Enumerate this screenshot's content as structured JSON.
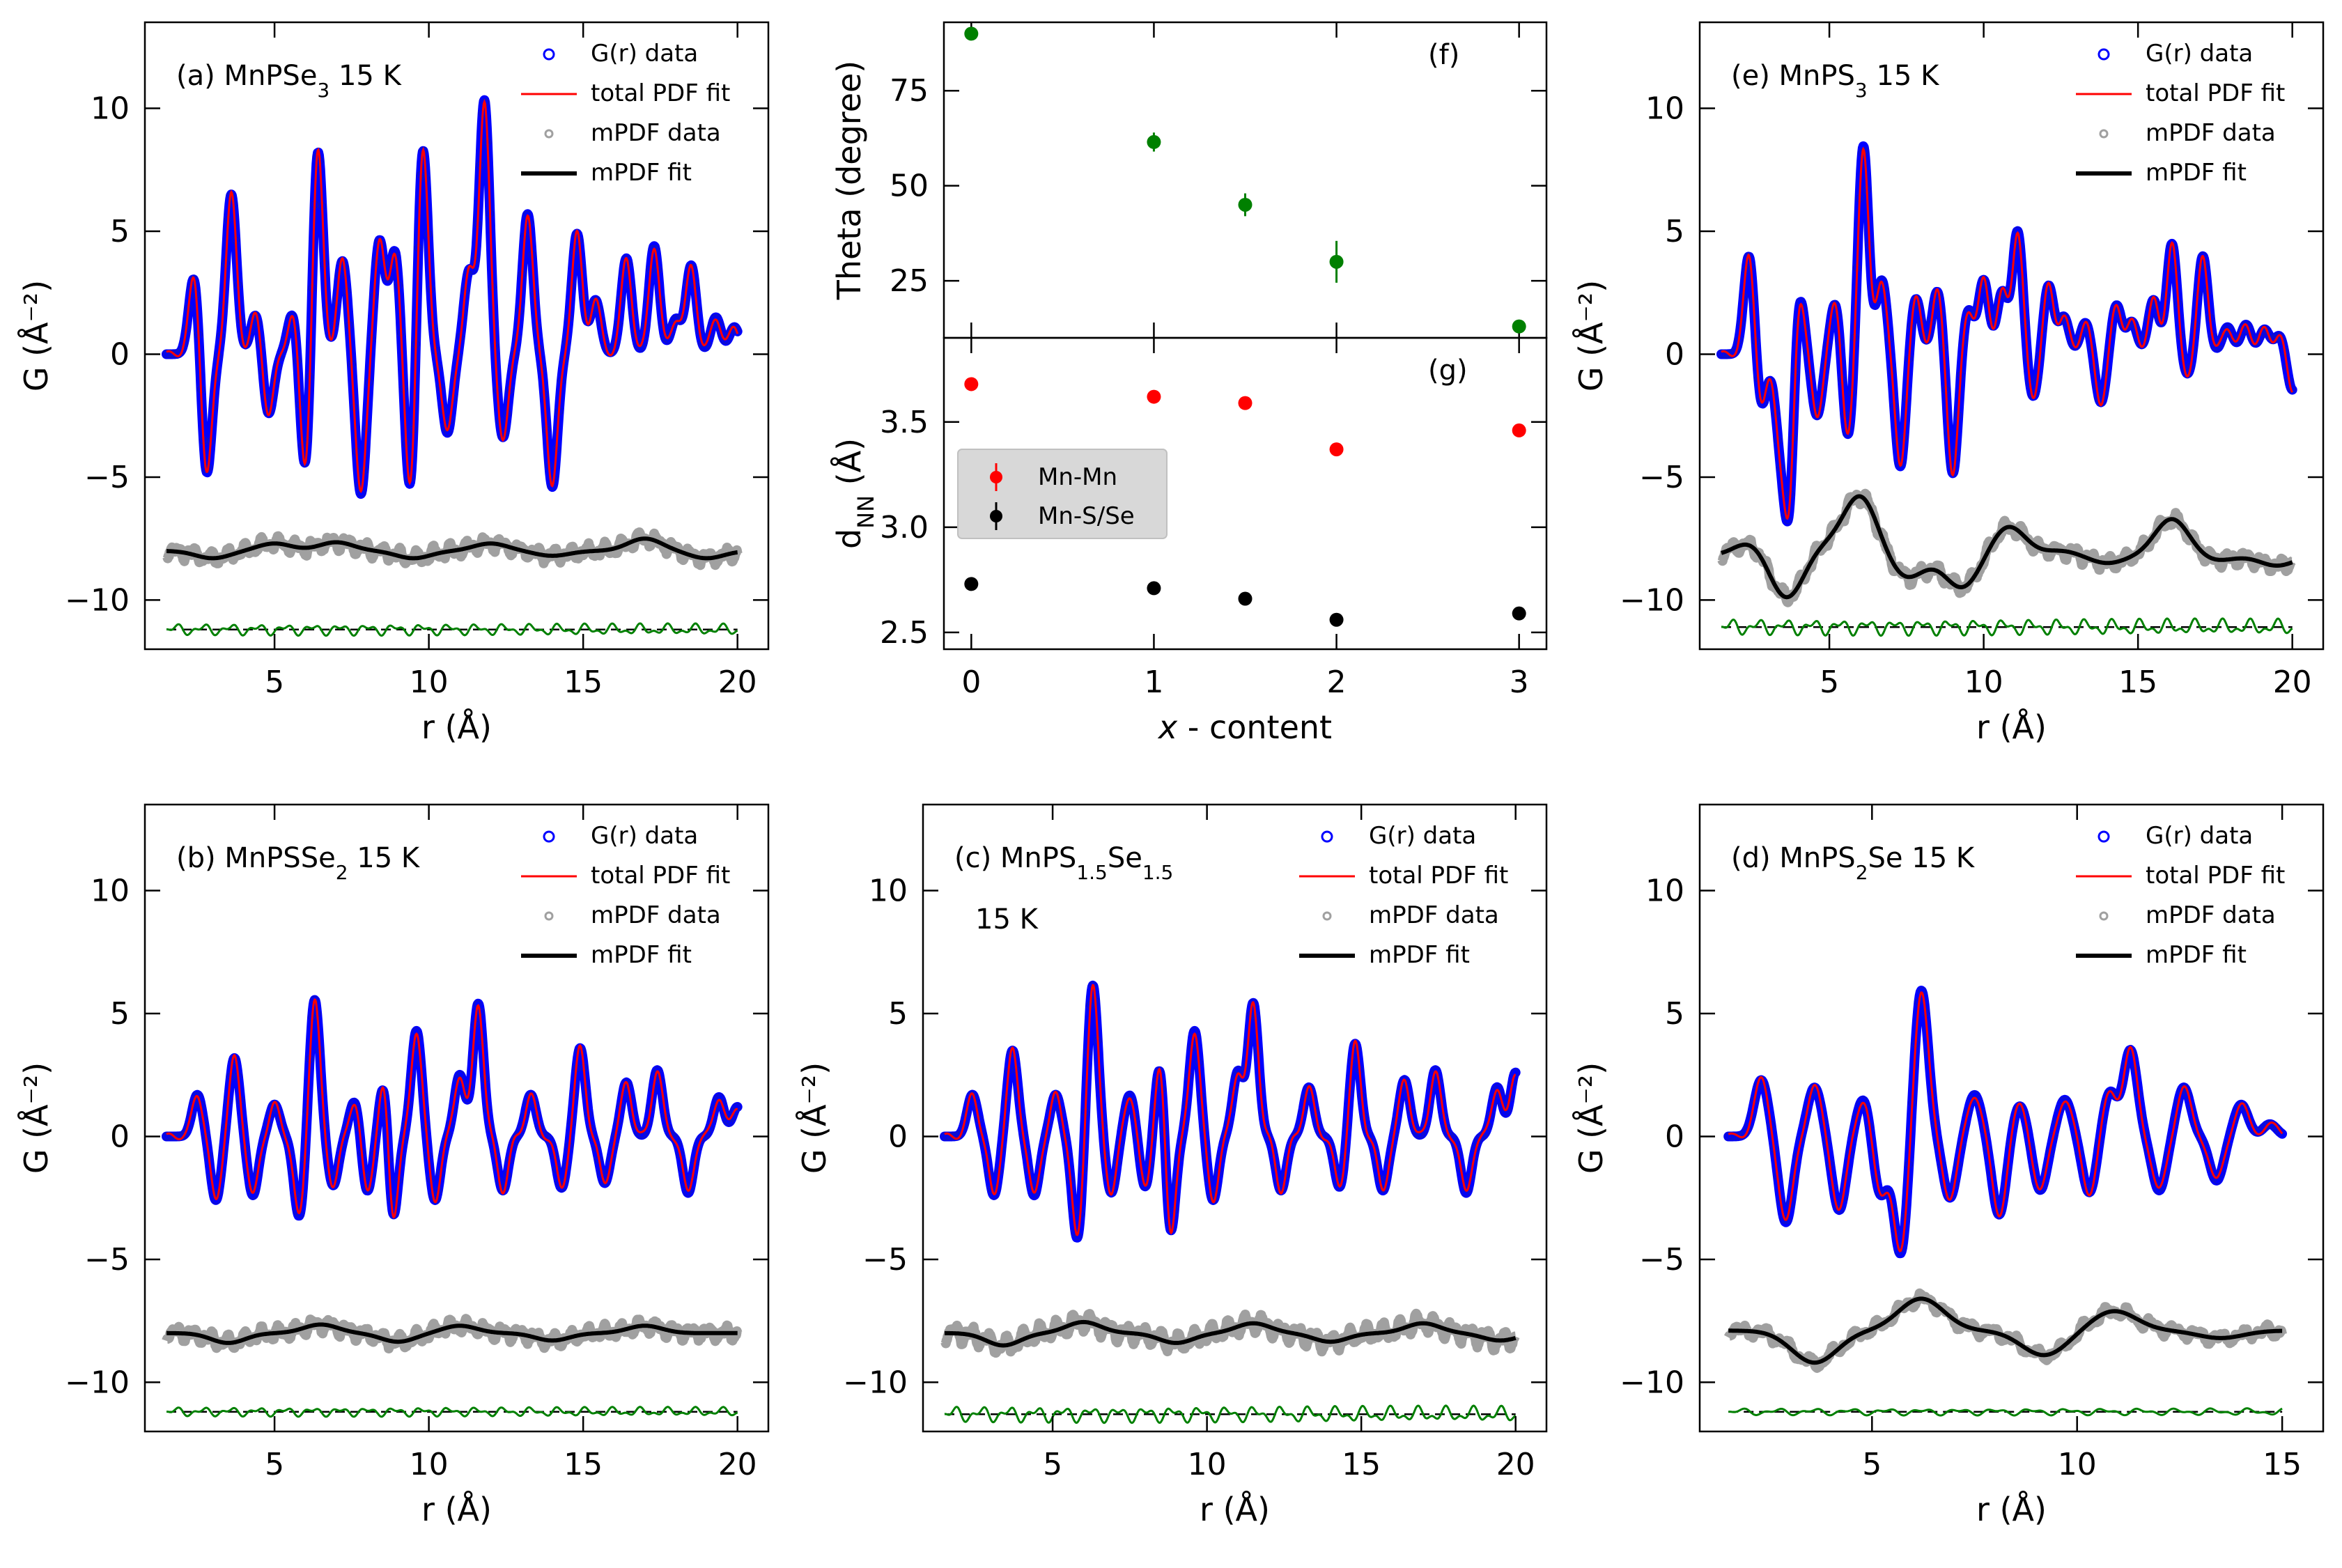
{
  "colors": {
    "g_data": "#0000ff",
    "total_fit": "#ff0000",
    "mpdf_data": "#a0a0a0",
    "mpdf_fit": "#000000",
    "difference": "#008000",
    "theta": "#008000",
    "mn_mn": "#ff0000",
    "mn_s_se": "#000000"
  },
  "legend_pdf": [
    "G(r) data",
    "total PDF fit",
    "mPDF data",
    "mPDF fit"
  ],
  "legend_dnn": [
    "Mn-Mn",
    "Mn-S/Se"
  ],
  "chart_data": [
    {
      "id": "a",
      "type": "line",
      "label_html": "(a) MnPSe<tspan baseline-shift=\"sub\" font-size=\"28\">3</tspan>  15 K",
      "xlabel": "r (Å)",
      "ylabel": "G (Å⁻²)",
      "xlim": [
        0.8,
        21.0
      ],
      "ylim": [
        -12,
        13.5
      ],
      "xticks": [
        5,
        10,
        15,
        20
      ],
      "yticks": [
        -10,
        -5,
        0,
        5,
        10
      ],
      "r_range": [
        1.5,
        20.0
      ],
      "peaks": [
        [
          2.4,
          3.3
        ],
        [
          2.8,
          -5.0
        ],
        [
          3.6,
          6.5
        ],
        [
          4.4,
          1.7
        ],
        [
          4.8,
          -2.5
        ],
        [
          5.6,
          1.8
        ],
        [
          6.0,
          -5.0
        ],
        [
          6.4,
          8.5
        ],
        [
          7.2,
          3.8
        ],
        [
          7.8,
          -5.7
        ],
        [
          8.4,
          4.6
        ],
        [
          8.9,
          4.2
        ],
        [
          9.4,
          -5.8
        ],
        [
          9.8,
          8.6
        ],
        [
          10.6,
          -3.2
        ],
        [
          11.3,
          3.3
        ],
        [
          11.8,
          10.3
        ],
        [
          12.4,
          -3.4
        ],
        [
          13.2,
          5.7
        ],
        [
          14.0,
          -5.4
        ],
        [
          14.8,
          4.9
        ],
        [
          15.4,
          2.2
        ],
        [
          16.4,
          3.9
        ],
        [
          17.3,
          4.4
        ],
        [
          18.0,
          1.4
        ],
        [
          18.5,
          3.6
        ],
        [
          19.3,
          1.5
        ],
        [
          19.9,
          1.1
        ]
      ],
      "mpdf_offset": -8.0,
      "mpdf_bumps": [
        [
          3.0,
          -0.3
        ],
        [
          5.0,
          0.3
        ],
        [
          7.0,
          0.35
        ],
        [
          9.5,
          -0.3
        ],
        [
          12.0,
          0.3
        ],
        [
          14.0,
          -0.2
        ],
        [
          17.0,
          0.5
        ],
        [
          19.0,
          -0.3
        ]
      ],
      "mpdf_noise": 0.3,
      "diff_offset": -11.2,
      "diff_amp": 0.25
    },
    {
      "id": "b",
      "type": "line",
      "label_html": "(b) MnPSSe<tspan baseline-shift=\"sub\" font-size=\"28\">2</tspan>  15 K",
      "xlabel": "r (Å)",
      "ylabel": "G (Å⁻²)",
      "xlim": [
        0.8,
        21.0
      ],
      "ylim": [
        -12,
        13.5
      ],
      "xticks": [
        5,
        10,
        15,
        20
      ],
      "yticks": [
        -10,
        -5,
        0,
        5,
        10
      ],
      "r_range": [
        1.5,
        20.0
      ],
      "peaks": [
        [
          2.5,
          1.7
        ],
        [
          3.1,
          -2.6
        ],
        [
          3.7,
          3.2
        ],
        [
          4.3,
          -2.4
        ],
        [
          5.0,
          1.3
        ],
        [
          5.8,
          -3.3
        ],
        [
          6.3,
          5.6
        ],
        [
          6.9,
          -2.0
        ],
        [
          7.6,
          1.5
        ],
        [
          8.0,
          -2.3
        ],
        [
          8.6,
          3.4
        ],
        [
          8.8,
          -4.5
        ],
        [
          9.6,
          4.3
        ],
        [
          10.2,
          -2.6
        ],
        [
          11.0,
          2.5
        ],
        [
          11.6,
          5.4
        ],
        [
          12.4,
          -2.2
        ],
        [
          13.3,
          1.7
        ],
        [
          14.3,
          -2.1
        ],
        [
          14.9,
          3.6
        ],
        [
          15.7,
          -1.9
        ],
        [
          16.4,
          2.2
        ],
        [
          17.4,
          2.7
        ],
        [
          18.4,
          -2.3
        ],
        [
          19.4,
          1.6
        ],
        [
          20.0,
          1.2
        ]
      ],
      "mpdf_offset": -8.0,
      "mpdf_bumps": [
        [
          3.5,
          -0.4
        ],
        [
          6.5,
          0.35
        ],
        [
          9.0,
          -0.35
        ],
        [
          11.0,
          0.3
        ],
        [
          14.0,
          -0.3
        ],
        [
          17.0,
          0.3
        ]
      ],
      "mpdf_noise": 0.3,
      "diff_offset": -11.2,
      "diff_amp": 0.2
    },
    {
      "id": "c",
      "type": "line",
      "label_html": "(c) MnPS<tspan baseline-shift=\"sub\" font-size=\"28\">1.5</tspan>Se<tspan baseline-shift=\"sub\" font-size=\"28\">1.5</tspan>",
      "label2": "15 K",
      "xlabel": "r (Å)",
      "ylabel": "G (Å⁻²)",
      "xlim": [
        0.8,
        21.0
      ],
      "ylim": [
        -12,
        13.5
      ],
      "xticks": [
        5,
        10,
        15,
        20
      ],
      "yticks": [
        -10,
        -5,
        0,
        5,
        10
      ],
      "r_range": [
        1.5,
        20.0
      ],
      "peaks": [
        [
          2.4,
          1.7
        ],
        [
          3.1,
          -2.4
        ],
        [
          3.7,
          3.5
        ],
        [
          4.4,
          -2.4
        ],
        [
          5.1,
          1.7
        ],
        [
          5.8,
          -4.2
        ],
        [
          6.3,
          6.2
        ],
        [
          6.9,
          -2.3
        ],
        [
          7.5,
          1.7
        ],
        [
          8.0,
          -2.1
        ],
        [
          8.5,
          3.4
        ],
        [
          8.8,
          -4.4
        ],
        [
          9.6,
          4.3
        ],
        [
          10.2,
          -2.6
        ],
        [
          11.0,
          2.6
        ],
        [
          11.5,
          5.4
        ],
        [
          12.4,
          -2.2
        ],
        [
          13.3,
          2.0
        ],
        [
          14.3,
          -2.1
        ],
        [
          14.8,
          3.8
        ],
        [
          15.7,
          -2.2
        ],
        [
          16.4,
          2.3
        ],
        [
          17.4,
          2.7
        ],
        [
          18.4,
          -2.3
        ],
        [
          19.4,
          2.0
        ],
        [
          20.0,
          2.6
        ]
      ],
      "mpdf_offset": -8.0,
      "mpdf_bumps": [
        [
          3.4,
          -0.5
        ],
        [
          6.0,
          0.45
        ],
        [
          9.0,
          -0.4
        ],
        [
          11.5,
          0.4
        ],
        [
          14.0,
          -0.35
        ],
        [
          17.0,
          0.4
        ],
        [
          19.5,
          -0.3
        ]
      ],
      "mpdf_noise": 0.4,
      "diff_offset": -11.3,
      "diff_amp": 0.35
    },
    {
      "id": "d",
      "type": "line",
      "label_html": "(d) MnPS<tspan baseline-shift=\"sub\" font-size=\"28\">2</tspan>Se  15 K",
      "xlabel": "r (Å)",
      "ylabel": "G (Å⁻²)",
      "xlim": [
        0.8,
        16.0
      ],
      "ylim": [
        -12,
        13.5
      ],
      "xticks": [
        5,
        10,
        15
      ],
      "yticks": [
        -10,
        -5,
        0,
        5,
        10
      ],
      "r_range": [
        1.5,
        15.0
      ],
      "peaks": [
        [
          2.3,
          2.3
        ],
        [
          2.9,
          -3.5
        ],
        [
          3.6,
          2.0
        ],
        [
          4.2,
          -3.0
        ],
        [
          4.8,
          1.6
        ],
        [
          5.2,
          -2.4
        ],
        [
          5.7,
          -4.8
        ],
        [
          6.2,
          6.0
        ],
        [
          6.9,
          -2.5
        ],
        [
          7.5,
          1.7
        ],
        [
          8.1,
          -3.2
        ],
        [
          8.6,
          1.3
        ],
        [
          9.1,
          -2.2
        ],
        [
          9.7,
          1.5
        ],
        [
          10.3,
          -2.3
        ],
        [
          10.8,
          1.8
        ],
        [
          11.3,
          3.5
        ],
        [
          12.0,
          -2.2
        ],
        [
          12.6,
          2.0
        ],
        [
          13.4,
          -1.8
        ],
        [
          14.0,
          1.3
        ],
        [
          14.7,
          0.5
        ]
      ],
      "mpdf_offset": -7.9,
      "mpdf_bumps": [
        [
          3.6,
          -1.3
        ],
        [
          6.2,
          1.3
        ],
        [
          9.2,
          -1.0
        ],
        [
          10.9,
          0.8
        ],
        [
          13.5,
          -0.3
        ]
      ],
      "mpdf_noise": 0.25,
      "diff_offset": -11.2,
      "diff_amp": 0.15
    },
    {
      "id": "e",
      "type": "line",
      "label_html": "(e) MnPS<tspan baseline-shift=\"sub\" font-size=\"28\">3</tspan>   15 K",
      "xlabel": "r (Å)",
      "ylabel": "G (Å⁻²)",
      "xlim": [
        0.8,
        21.0
      ],
      "ylim": [
        -12,
        13.5
      ],
      "xticks": [
        5,
        10,
        15,
        20
      ],
      "yticks": [
        -10,
        -5,
        0,
        5,
        10
      ],
      "r_range": [
        1.5,
        20.0
      ],
      "peaks": [
        [
          2.4,
          4.1
        ],
        [
          2.8,
          -2.2
        ],
        [
          3.4,
          -3.0
        ],
        [
          3.7,
          -6.4
        ],
        [
          4.0,
          3.0
        ],
        [
          4.6,
          -2.5
        ],
        [
          5.2,
          2.2
        ],
        [
          5.6,
          -3.5
        ],
        [
          6.1,
          8.5
        ],
        [
          6.7,
          3.0
        ],
        [
          7.3,
          -4.6
        ],
        [
          7.8,
          2.3
        ],
        [
          8.5,
          2.6
        ],
        [
          9.0,
          -4.9
        ],
        [
          9.5,
          1.8
        ],
        [
          10.0,
          3.0
        ],
        [
          10.6,
          2.5
        ],
        [
          11.1,
          5.0
        ],
        [
          11.6,
          -1.8
        ],
        [
          12.1,
          2.8
        ],
        [
          12.6,
          1.5
        ],
        [
          13.3,
          1.3
        ],
        [
          13.8,
          -2.0
        ],
        [
          14.3,
          2.0
        ],
        [
          14.8,
          1.3
        ],
        [
          15.5,
          2.2
        ],
        [
          16.1,
          4.5
        ],
        [
          16.6,
          -0.9
        ],
        [
          17.1,
          4.0
        ],
        [
          17.9,
          1.1
        ],
        [
          18.5,
          1.2
        ],
        [
          19.1,
          1.0
        ],
        [
          19.6,
          0.8
        ],
        [
          20.0,
          -1.5
        ]
      ],
      "mpdf_offset": -8.2,
      "mpdf_bumps": [
        [
          2.5,
          0.6
        ],
        [
          3.6,
          -1.8
        ],
        [
          4.8,
          0.4
        ],
        [
          6.0,
          2.4
        ],
        [
          7.5,
          -0.9
        ],
        [
          9.3,
          -1.3
        ],
        [
          10.8,
          1.2
        ],
        [
          12.5,
          0.2
        ],
        [
          14.0,
          -0.3
        ],
        [
          16.1,
          1.5
        ],
        [
          17.5,
          -0.2
        ],
        [
          19.5,
          -0.4
        ]
      ],
      "mpdf_noise": 0.3,
      "diff_offset": -11.1,
      "diff_amp": 0.35
    },
    {
      "id": "f",
      "type": "scatter",
      "label": "(f)",
      "ylabel": "Theta (degree)",
      "xlim": [
        -0.15,
        3.15
      ],
      "ylim": [
        10,
        93
      ],
      "yticks": [
        25,
        50,
        75
      ],
      "x": [
        0,
        1,
        1.5,
        2,
        3
      ],
      "y": [
        90,
        61.5,
        45,
        30,
        13
      ],
      "yerr": [
        1.5,
        2.5,
        3.0,
        5.5,
        1.0
      ]
    },
    {
      "id": "g",
      "type": "scatter",
      "label": "(g)",
      "xlabel_html": "<tspan font-style=\"italic\">x</tspan> - content",
      "ylabel": "dNN (Å)",
      "xlim": [
        -0.15,
        3.15
      ],
      "ylim": [
        2.42,
        3.9
      ],
      "xticks": [
        0,
        1,
        2,
        3
      ],
      "yticks": [
        2.5,
        3.0,
        3.5
      ],
      "series": [
        {
          "name": "Mn-Mn",
          "x": [
            0,
            1,
            1.5,
            2,
            3
          ],
          "y": [
            3.68,
            3.62,
            3.59,
            3.37,
            3.46
          ]
        },
        {
          "name": "Mn-S/Se",
          "x": [
            0,
            1,
            1.5,
            2,
            3
          ],
          "y": [
            2.73,
            2.71,
            2.66,
            2.56,
            2.59
          ]
        }
      ]
    }
  ]
}
